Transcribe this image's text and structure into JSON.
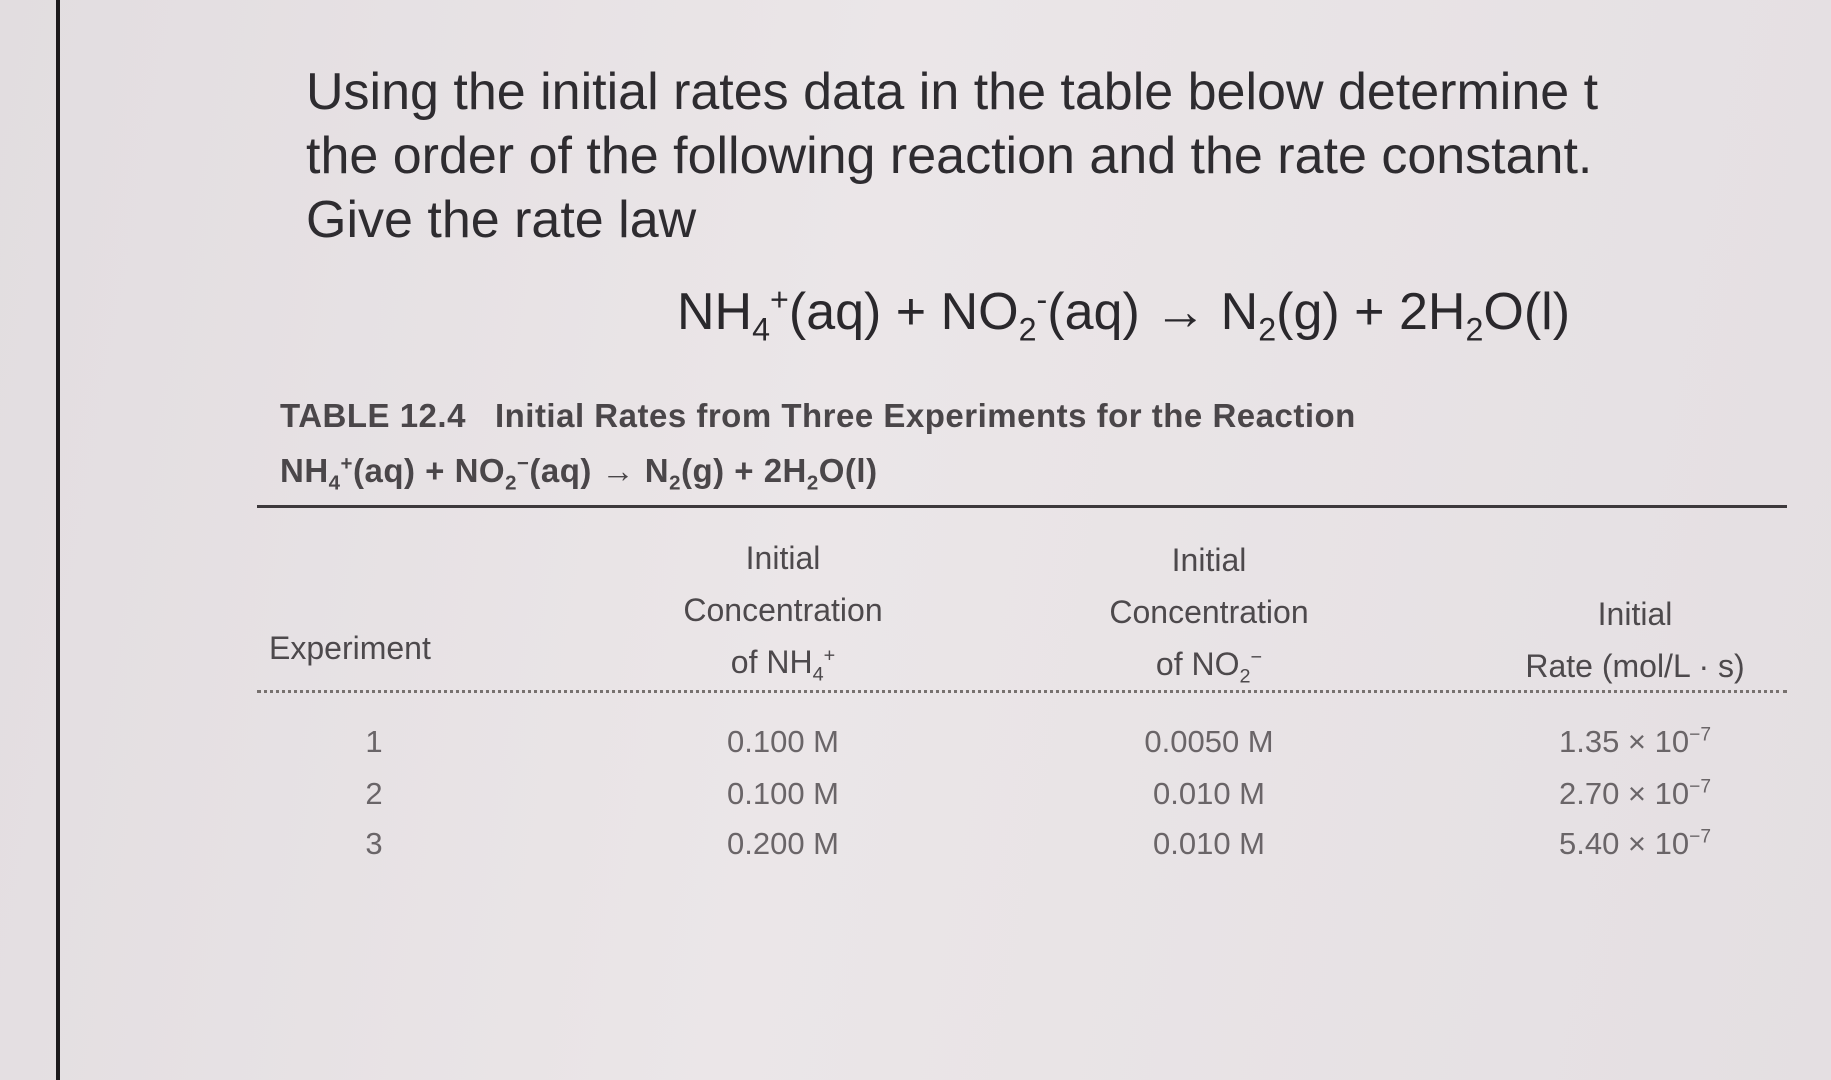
{
  "question": {
    "lines": [
      "Using the initial rates data in the table below determine t",
      "the order of the following reaction and the rate constant.",
      "Give the rate law"
    ]
  },
  "equation": [
    "NH",
    "4",
    "+",
    "(aq) + NO",
    "2",
    "-",
    "(aq) → N",
    "2",
    "(g) + 2H",
    "2",
    "O(l)"
  ],
  "table": {
    "label": "TABLE 12.4",
    "caption": "Initial Rates from Three Experiments for the Reaction",
    "reaction": [
      "NH",
      "4",
      "+",
      "(aq) + NO",
      "2",
      "−",
      "(aq) → N",
      "2",
      "(g) + 2H",
      "2",
      "O(l)"
    ],
    "headers": [
      [
        "Experiment"
      ],
      [
        "Initial",
        "Concentration",
        "of NH",
        "4",
        "+"
      ],
      [
        "Initial",
        "Concentration",
        "of NO",
        "2",
        "−"
      ],
      [
        "Initial",
        "Rate (mol/L · s)"
      ]
    ],
    "rows": [
      [
        "1",
        "0.100 M",
        "0.0050 M",
        "1.35 × 10",
        "−7"
      ],
      [
        "2",
        "0.100 M",
        "0.010 M",
        "2.70 × 10",
        "−7"
      ],
      [
        "3",
        "0.200 M",
        "0.010 M",
        "5.40 × 10",
        "−7"
      ]
    ]
  }
}
